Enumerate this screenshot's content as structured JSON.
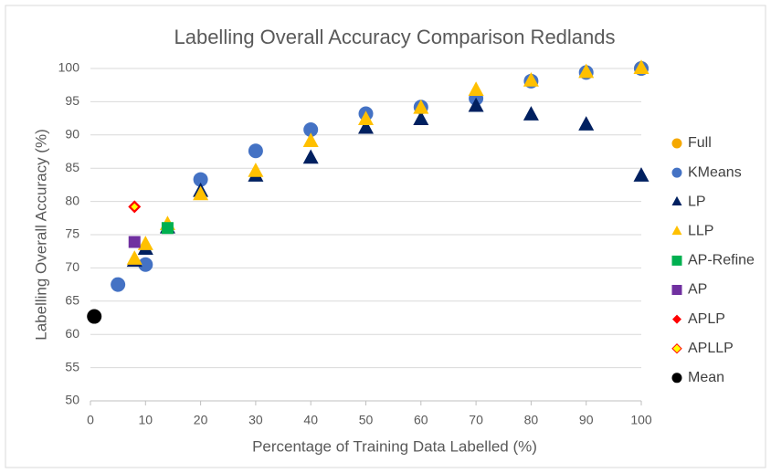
{
  "chart_data": {
    "type": "scatter",
    "title": "Labelling Overall Accuracy Comparison Redlands",
    "x_label": "Percentage of Training Data Labelled (%)",
    "y_label": "Labelling Overall Accuracy (%)",
    "xlim": [
      0,
      100
    ],
    "xticks": [
      0,
      10,
      20,
      30,
      40,
      50,
      60,
      70,
      80,
      90,
      100
    ],
    "ylim": [
      50,
      100
    ],
    "yticks": [
      50,
      55,
      60,
      65,
      70,
      75,
      80,
      85,
      90,
      95,
      100
    ],
    "grid": true,
    "legend": "right",
    "series": [
      {
        "name": "Full",
        "color": "#f5a800",
        "marker": "circle",
        "x": [
          100
        ],
        "values": [
          100
        ]
      },
      {
        "name": "KMeans",
        "color": "#4472c4",
        "marker": "circle",
        "x": [
          5,
          10,
          20,
          30,
          40,
          50,
          60,
          70,
          80,
          90,
          100
        ],
        "values": [
          67.5,
          70.5,
          83.3,
          87.6,
          90.8,
          93.2,
          94.2,
          95.5,
          98.1,
          99.4,
          100
        ]
      },
      {
        "name": "LP",
        "color": "#002060",
        "marker": "triangle",
        "x": [
          8,
          10,
          14,
          20,
          30,
          40,
          50,
          60,
          70,
          80,
          90,
          100
        ],
        "values": [
          71,
          72.8,
          76,
          81.5,
          83.8,
          86.5,
          91,
          92.3,
          94.3,
          93,
          91.5,
          83.8
        ]
      },
      {
        "name": "LLP",
        "color": "#ffc000",
        "marker": "triangle",
        "x": [
          8,
          10,
          14,
          20,
          30,
          40,
          50,
          60,
          70,
          80,
          90,
          100
        ],
        "values": [
          71.3,
          73.5,
          76.5,
          81,
          84.5,
          89,
          92.3,
          94,
          96.7,
          98.1,
          99.4,
          100
        ]
      },
      {
        "name": "AP-Refine",
        "color": "#00b050",
        "marker": "square",
        "x": [
          14
        ],
        "values": [
          76
        ]
      },
      {
        "name": "AP",
        "color": "#7030a0",
        "marker": "square",
        "x": [
          8
        ],
        "values": [
          73.9
        ]
      },
      {
        "name": "APLP",
        "color": "#ff0000",
        "marker": "diamond",
        "x": [
          8
        ],
        "values": [
          79.2
        ]
      },
      {
        "name": "APLLP",
        "color": "#ffff00",
        "marker": "diamond",
        "x": [
          8
        ],
        "values": [
          79.2
        ]
      },
      {
        "name": "Mean",
        "color": "#000000",
        "marker": "circle",
        "x": [
          0.7
        ],
        "values": [
          62.7
        ]
      }
    ]
  }
}
